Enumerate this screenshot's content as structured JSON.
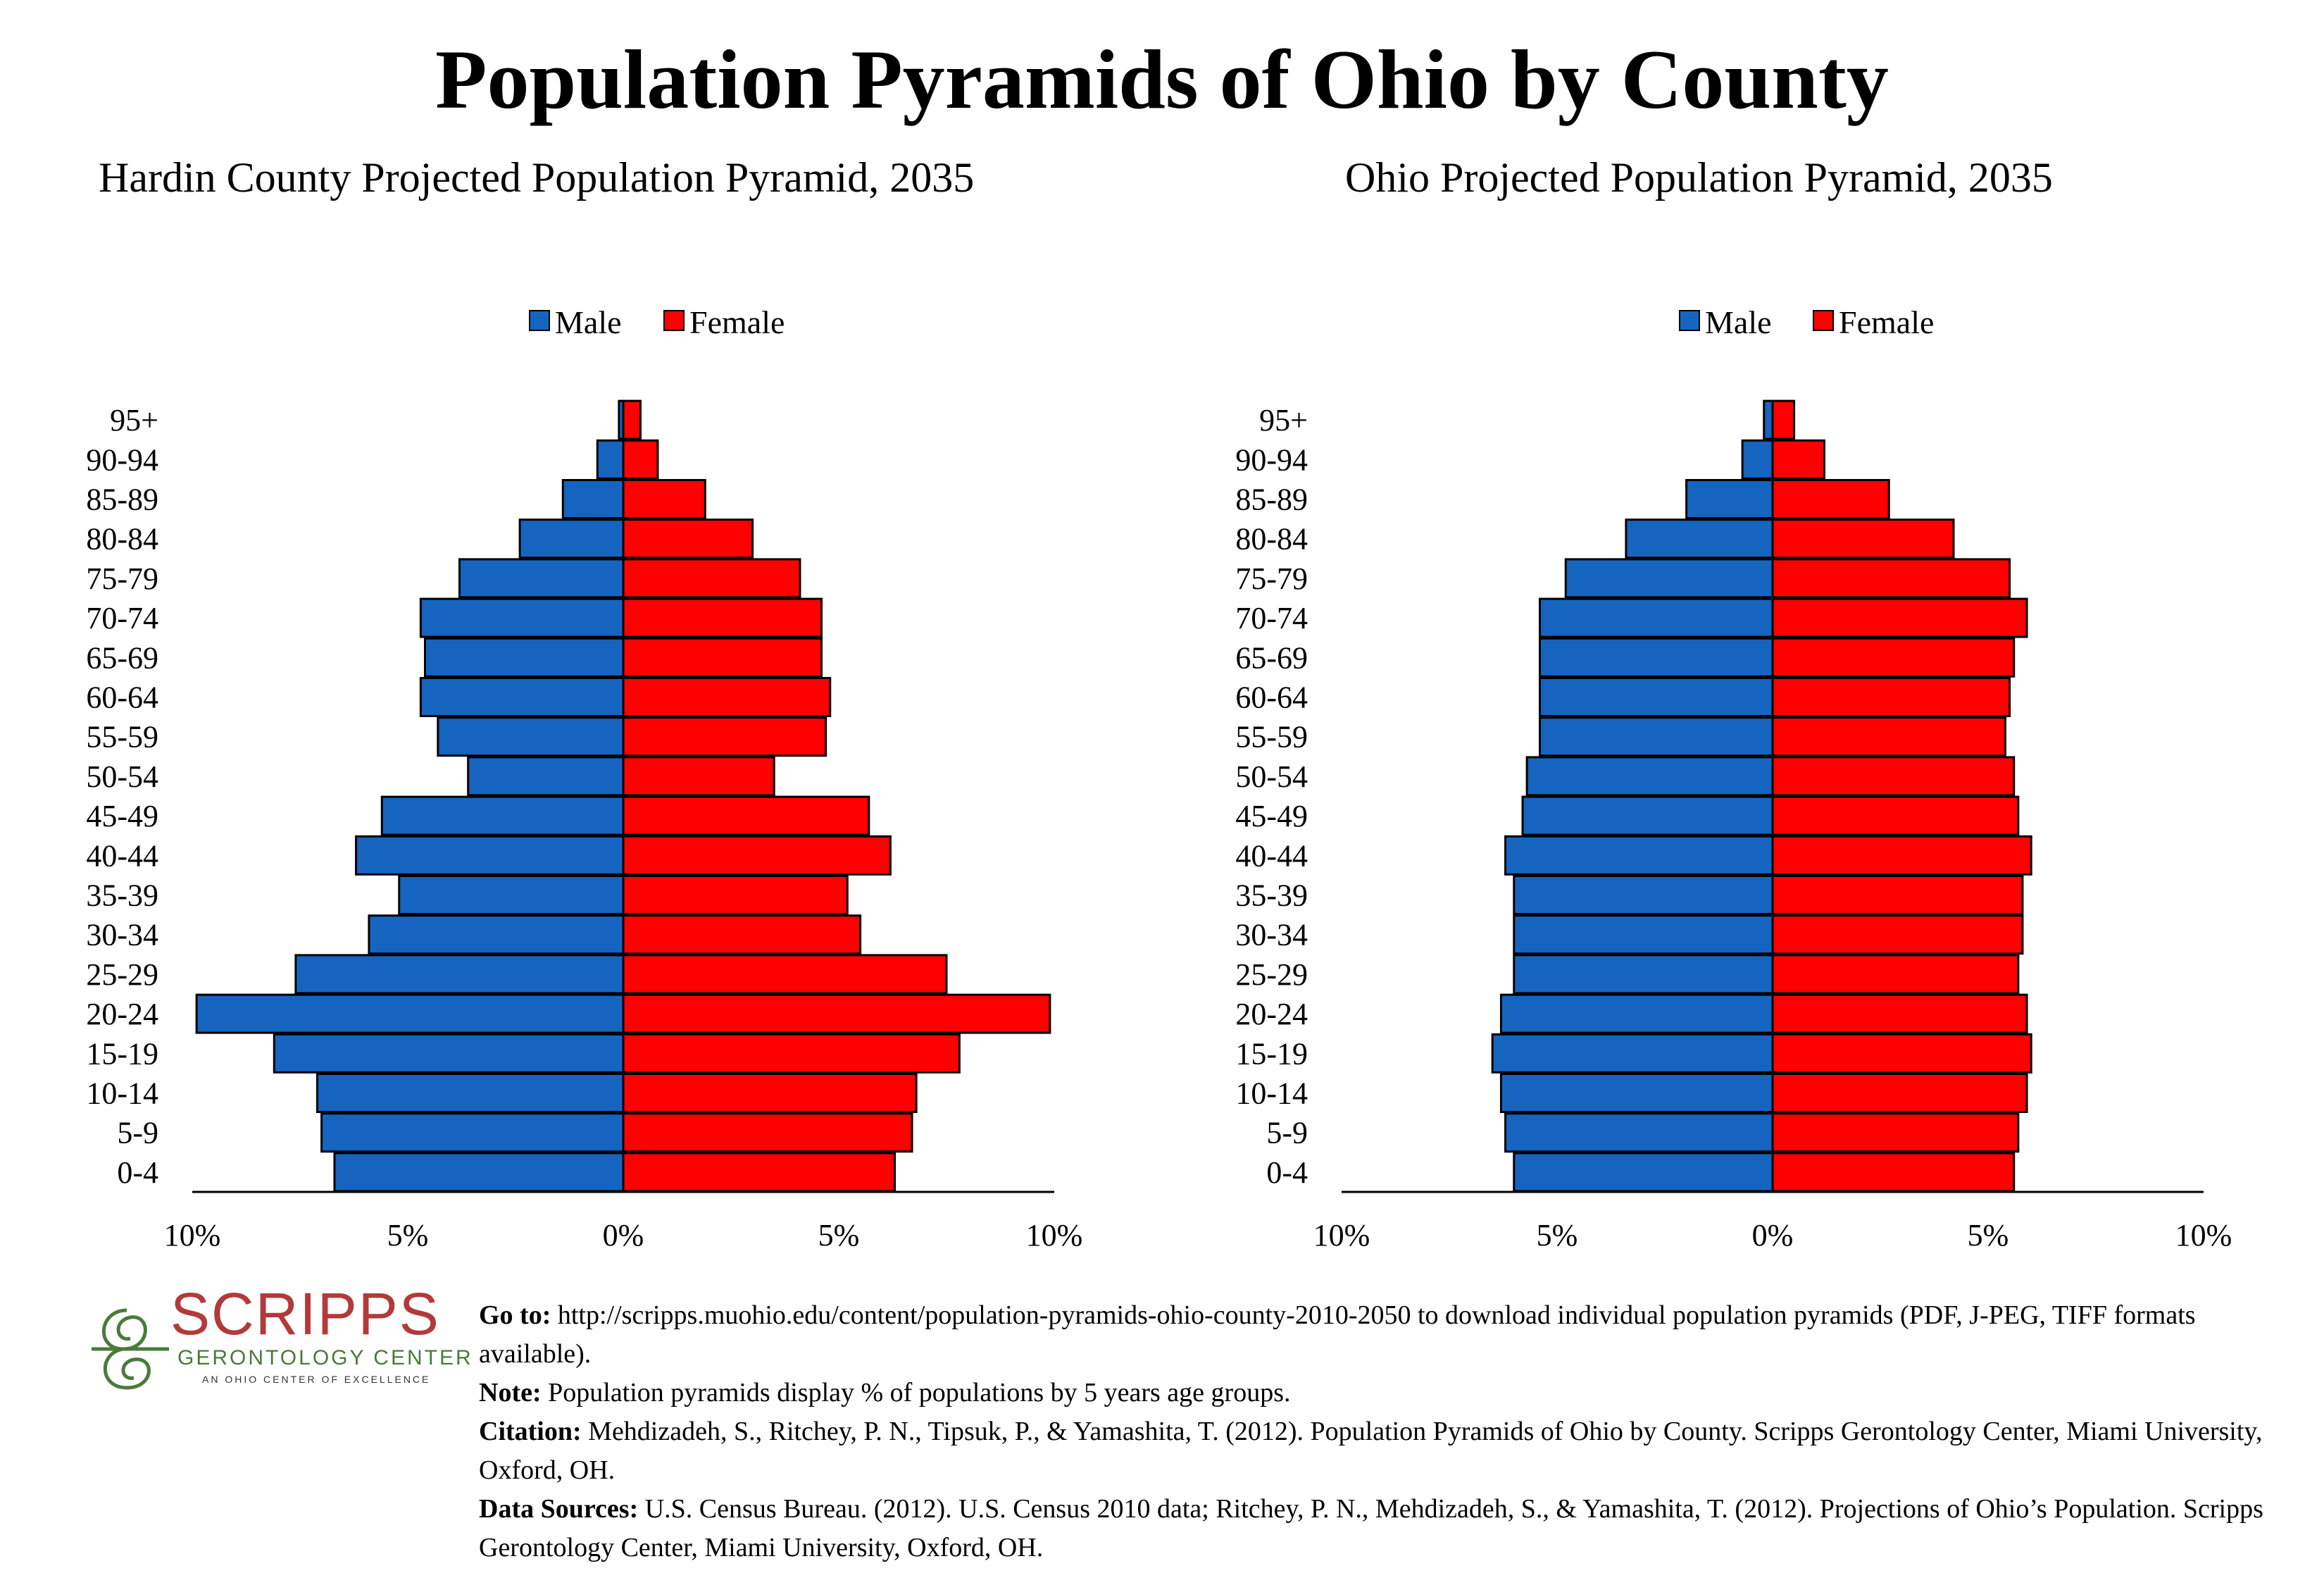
{
  "title": "Population Pyramids of Ohio by County",
  "colors": {
    "male": "#1565c0",
    "female": "#ff0000"
  },
  "chart_data": [
    {
      "type": "bar",
      "orientation": "horizontal-pyramid",
      "title": "Hardin County Projected Population Pyramid, 2035",
      "categories": [
        "0-4",
        "5-9",
        "10-14",
        "15-19",
        "20-24",
        "25-29",
        "30-34",
        "35-39",
        "40-44",
        "45-49",
        "50-54",
        "55-59",
        "60-64",
        "65-69",
        "70-74",
        "75-79",
        "80-84",
        "85-89",
        "90-94",
        "95+"
      ],
      "series": [
        {
          "name": "Male",
          "values": [
            6.7,
            7.0,
            7.1,
            8.1,
            9.9,
            7.6,
            5.9,
            5.2,
            6.2,
            5.6,
            3.6,
            4.3,
            4.7,
            4.6,
            4.7,
            3.8,
            2.4,
            1.4,
            0.6,
            0.1
          ]
        },
        {
          "name": "Female",
          "values": [
            6.3,
            6.7,
            6.8,
            7.8,
            9.9,
            7.5,
            5.5,
            5.2,
            6.2,
            5.7,
            3.5,
            4.7,
            4.8,
            4.6,
            4.6,
            4.1,
            3.0,
            1.9,
            0.8,
            0.4
          ]
        }
      ],
      "xlim": [
        -10,
        10
      ],
      "xticks": [
        "10%",
        "5%",
        "0%",
        "5%",
        "10%"
      ],
      "legend": "top-center",
      "grid": false
    },
    {
      "type": "bar",
      "orientation": "horizontal-pyramid",
      "title": "Ohio Projected Population Pyramid, 2035",
      "categories": [
        "0-4",
        "5-9",
        "10-14",
        "15-19",
        "20-24",
        "25-29",
        "30-34",
        "35-39",
        "40-44",
        "45-49",
        "50-54",
        "55-59",
        "60-64",
        "65-69",
        "70-74",
        "75-79",
        "80-84",
        "85-89",
        "90-94",
        "95+"
      ],
      "series": [
        {
          "name": "Male",
          "values": [
            6.0,
            6.2,
            6.3,
            6.5,
            6.3,
            6.0,
            6.0,
            6.0,
            6.2,
            5.8,
            5.7,
            5.4,
            5.4,
            5.4,
            5.4,
            4.8,
            3.4,
            2.0,
            0.7,
            0.2
          ]
        },
        {
          "name": "Female",
          "values": [
            5.6,
            5.7,
            5.9,
            6.0,
            5.9,
            5.7,
            5.8,
            5.8,
            6.0,
            5.7,
            5.6,
            5.4,
            5.5,
            5.6,
            5.9,
            5.5,
            4.2,
            2.7,
            1.2,
            0.5
          ]
        }
      ],
      "xlim": [
        -10,
        10
      ],
      "xticks": [
        "10%",
        "5%",
        "0%",
        "5%",
        "10%"
      ],
      "legend": "top-center",
      "grid": false
    }
  ],
  "logo": {
    "name": "SCRIPPS",
    "subtitle": "GERONTOLOGY CENTER",
    "tagline": "AN OHIO CENTER OF EXCELLENCE"
  },
  "notes": [
    {
      "label": "Go to:",
      "text": " http://scripps.muohio.edu/content/population-pyramids-ohio-county-2010-2050 to download individual population pyramids (PDF, J-PEG, TIFF formats available)."
    },
    {
      "label": "Note:",
      "text": " Population pyramids display % of populations by 5 years age groups."
    },
    {
      "label": "Citation:",
      "text": " Mehdizadeh, S., Ritchey, P. N., Tipsuk, P., & Yamashita, T. (2012). Population Pyramids of Ohio by County. Scripps Gerontology Center, Miami University, Oxford, OH."
    },
    {
      "label": "Data Sources:",
      "text": " U.S. Census Bureau. (2012). U.S. Census 2010 data; Ritchey, P. N., Mehdizadeh, S., & Yamashita, T. (2012). Projections of Ohio’s Population. Scripps Gerontology Center, Miami University, Oxford, OH."
    }
  ]
}
